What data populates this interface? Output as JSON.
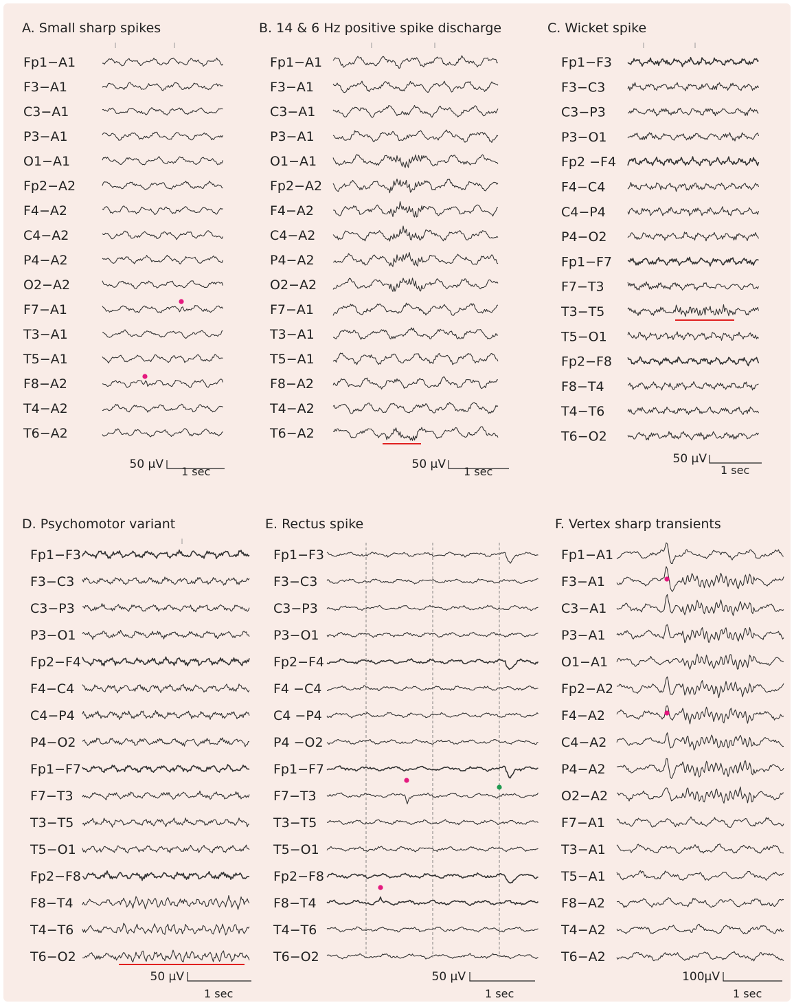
{
  "panels": [
    {
      "id": "A",
      "title": "A. Small sharp spikes",
      "channels": [
        "Fp1−A1",
        "F3−A1",
        "C3−A1",
        "P3−A1",
        "O1−A1",
        "Fp2−A2",
        "F4−A2",
        "C4−A2",
        "P4−A2",
        "O2−A2",
        "F7−A1",
        "T3−A1",
        "T5−A1",
        "F8−A2",
        "T4−A2",
        "T6−A2"
      ],
      "scale": {
        "amplitude": "50 µV",
        "time": "1 sec"
      },
      "markers": [
        {
          "channel": "F7−A1",
          "color": "#e4197e"
        },
        {
          "channel": "F8−A2",
          "color": "#e4197e"
        }
      ]
    },
    {
      "id": "B",
      "title": "B. 14 & 6 Hz positive spike discharge",
      "channels": [
        "Fp1−A1",
        "F3−A1",
        "C3−A1",
        "P3−A1",
        "O1−A1",
        "Fp2−A2",
        "F4−A2",
        "C4−A2",
        "P4−A2",
        "O2−A2",
        "F7−A1",
        "T3−A1",
        "T5−A1",
        "F8−A2",
        "T4−A2",
        "T6−A2"
      ],
      "scale": {
        "amplitude": "50 µV",
        "time": "1 sec"
      },
      "underline_channel": "T6−A2"
    },
    {
      "id": "C",
      "title": "C. Wicket spike",
      "channels": [
        "Fp1−F3",
        "F3−C3",
        "C3−P3",
        "P3−O1",
        "Fp2 −F4",
        "F4−C4",
        "C4−P4",
        "P4−O2",
        "Fp1−F7",
        "F7−T3",
        "T3−T5",
        "T5−O1",
        "Fp2−F8",
        "F8−T4",
        "T4−T6",
        "T6−O2"
      ],
      "scale": {
        "amplitude": "50 µV",
        "time": "1 sec"
      },
      "underline_channel": "T3−T5"
    },
    {
      "id": "D",
      "title": "D. Psychomotor variant",
      "channels": [
        "Fp1−F3",
        "F3−C3",
        "C3−P3",
        "P3−O1",
        "Fp2−F4",
        "F4−C4",
        "C4−P4",
        "P4−O2",
        "Fp1−F7",
        "F7−T3",
        "T3−T5",
        "T5−O1",
        "Fp2−F8",
        "F8−T4",
        "T4−T6",
        "T6−O2"
      ],
      "scale": {
        "amplitude": "50 µV",
        "time": "1 sec"
      },
      "underline_channel": "T6−O2"
    },
    {
      "id": "E",
      "title": "E. Rectus spike",
      "channels": [
        "Fp1−F3",
        "F3−C3",
        "C3−P3",
        "P3−O1",
        "Fp2−F4",
        "F4 −C4",
        "C4 −P4",
        "P4 −O2",
        "Fp1−F7",
        "F7−T3",
        "T3−T5",
        "T5−O1",
        "Fp2−F8",
        "F8−T4",
        "T4−T6",
        "T6−O2"
      ],
      "scale": {
        "amplitude": "50 µV",
        "time": "1 sec"
      },
      "markers": [
        {
          "channel": "Fp1−F7",
          "color": "#e4197e"
        },
        {
          "channel": "Fp1−F7",
          "color": "#1f9a50"
        },
        {
          "channel": "Fp2−F8",
          "color": "#e4197e"
        }
      ]
    },
    {
      "id": "F",
      "title": "F. Vertex sharp transients",
      "channels": [
        "Fp1−A1",
        "F3−A1",
        "C3−A1",
        "P3−A1",
        "O1−A1",
        "Fp2−A2",
        "F4−A2",
        "C4−A2",
        "P4−A2",
        "O2−A2",
        "F7−A1",
        "T3−A1",
        "T5−A1",
        "F8−A2",
        "T4−A2",
        "T6−A2"
      ],
      "scale": {
        "amplitude": "100µV",
        "time": "1 sec"
      },
      "markers": [
        {
          "channel": "F3−A1",
          "color": "#e4197e"
        },
        {
          "channel": "F4−A2",
          "color": "#e4197e"
        }
      ]
    }
  ]
}
